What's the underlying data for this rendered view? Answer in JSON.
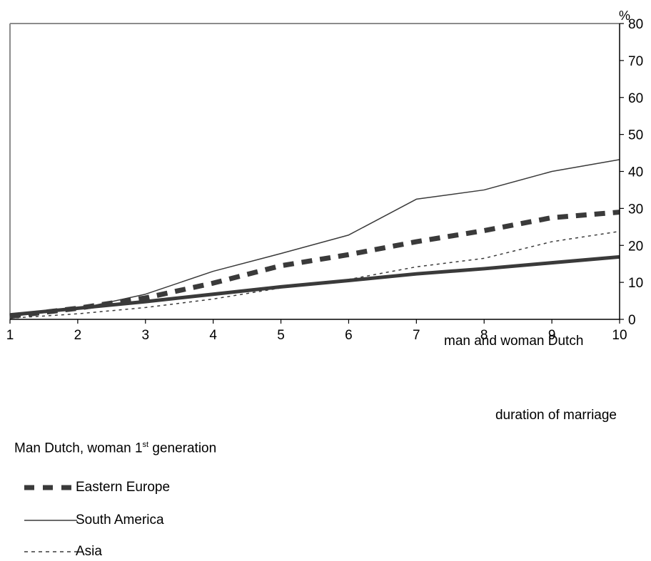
{
  "chart_data": {
    "type": "line",
    "x": [
      1,
      2,
      3,
      4,
      5,
      6,
      7,
      8,
      9,
      10
    ],
    "xlim": [
      1,
      10
    ],
    "ylim": [
      0,
      80
    ],
    "y_ticks": [
      "0",
      "10",
      "20",
      "30",
      "40",
      "50",
      "60",
      "70",
      "80"
    ],
    "x_ticks": [
      "1",
      "2",
      "3",
      "4",
      "5",
      "6",
      "7",
      "8",
      "9",
      "10"
    ],
    "y_unit": "%",
    "xlabel": "duration of marriage",
    "y_axis_side": "right",
    "grid": false,
    "series": [
      {
        "name": "Eastern Europe",
        "style": "dashed-thick",
        "color": "#3a3a3a",
        "values": [
          0.8,
          3.0,
          5.8,
          9.8,
          14.5,
          17.5,
          21.0,
          24.0,
          27.5,
          29.0
        ]
      },
      {
        "name": "South America",
        "style": "solid-thin",
        "color": "#3a3a3a",
        "values": [
          0.8,
          2.8,
          6.8,
          13.0,
          17.8,
          22.8,
          32.5,
          35.0,
          40.0,
          43.2
        ]
      },
      {
        "name": "Asia",
        "style": "dotted-thin",
        "color": "#3a3a3a",
        "values": [
          0.3,
          1.5,
          3.2,
          5.5,
          8.5,
          10.8,
          14.2,
          16.5,
          21.0,
          23.8
        ]
      },
      {
        "name": "man and woman Dutch",
        "style": "solid-thick",
        "color": "#3a3a3a",
        "values": [
          1.2,
          3.0,
          4.8,
          6.8,
          8.8,
          10.5,
          12.3,
          13.7,
          15.3,
          16.9
        ]
      }
    ],
    "annotation": "man and woman Dutch",
    "legend": {
      "title_prefix": "Man Dutch, woman 1",
      "title_sup": "st",
      "title_suffix": " generation",
      "entries": [
        "Eastern Europe",
        "South America",
        "Asia"
      ]
    }
  }
}
